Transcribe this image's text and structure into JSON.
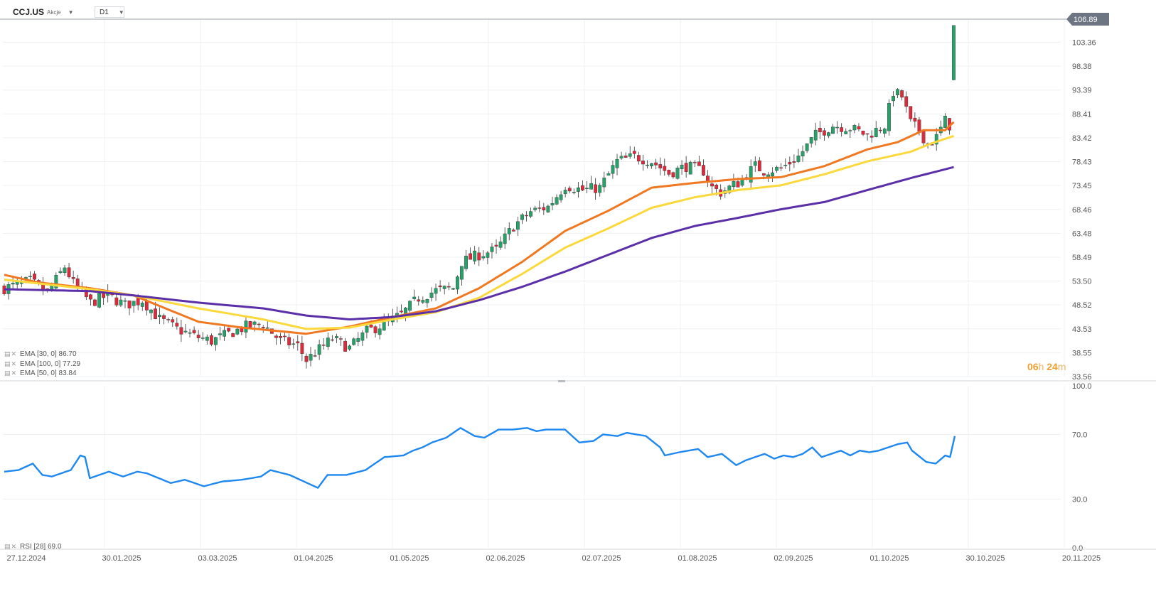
{
  "header": {
    "symbol": "CCJ.US",
    "instrument_type": "Akcje",
    "timeframe": "D1"
  },
  "countdown": {
    "hours": "06",
    "hours_unit": "h",
    "minutes": "24",
    "minutes_unit": "m"
  },
  "legend": {
    "ema30": "EMA [30, 0] 86.70",
    "ema100": "EMA [100, 0] 77.29",
    "ema50": "EMA [50, 0] 83.84",
    "rsi": "RSI [28] 69.0"
  },
  "colors": {
    "up": "#26a269",
    "down": "#e0293a",
    "ema30": "#f07820",
    "ema50": "#fbd83c",
    "ema100": "#5b2fa8",
    "rsi": "#1e88f0",
    "price_tag": "#6d7582"
  },
  "chart_data": [
    {
      "type": "candlestick",
      "title": "CCJ.US",
      "x_labels": [
        "27.12.2024",
        "30.01.2025",
        "03.03.2025",
        "01.04.2025",
        "01.05.2025",
        "02.06.2025",
        "02.07.2025",
        "01.08.2025",
        "02.09.2025",
        "01.10.2025",
        "30.10.2025",
        "20.11.2025"
      ],
      "y_ticks": [
        "103.36",
        "98.38",
        "93.39",
        "88.41",
        "83.42",
        "78.43",
        "73.45",
        "68.46",
        "63.48",
        "58.49",
        "53.50",
        "48.52",
        "43.53",
        "38.55",
        "33.56"
      ],
      "ylim": [
        33.56,
        108.33
      ],
      "last_price": "106.89",
      "series": [
        {
          "name": "EMA [30, 0]",
          "color": "ema30",
          "anchors": [
            [
              0,
              54.8
            ],
            [
              8,
              53.2
            ],
            [
              20,
              52.0
            ],
            [
              30,
              50.5
            ],
            [
              45,
              45.0
            ],
            [
              55,
              43.8
            ],
            [
              70,
              42.5
            ],
            [
              80,
              44.0
            ],
            [
              90,
              46.0
            ],
            [
              100,
              47.8
            ],
            [
              110,
              52.0
            ],
            [
              120,
              57.5
            ],
            [
              130,
              64.0
            ],
            [
              140,
              68.2
            ],
            [
              150,
              73.0
            ],
            [
              160,
              74.0
            ],
            [
              170,
              74.8
            ],
            [
              180,
              75.2
            ],
            [
              190,
              77.5
            ],
            [
              200,
              81.0
            ],
            [
              207,
              82.5
            ],
            [
              213,
              85.0
            ],
            [
              218,
              85.0
            ],
            [
              220,
              86.7
            ]
          ]
        },
        {
          "name": "EMA [50, 0]",
          "color": "ema50",
          "anchors": [
            [
              0,
              53.8
            ],
            [
              20,
              51.8
            ],
            [
              30,
              50.5
            ],
            [
              45,
              47.8
            ],
            [
              60,
              45.5
            ],
            [
              70,
              43.5
            ],
            [
              80,
              43.8
            ],
            [
              90,
              45.5
            ],
            [
              100,
              47.0
            ],
            [
              110,
              50.0
            ],
            [
              120,
              55.0
            ],
            [
              130,
              60.5
            ],
            [
              140,
              64.5
            ],
            [
              150,
              68.8
            ],
            [
              160,
              71.0
            ],
            [
              170,
              72.5
            ],
            [
              180,
              73.5
            ],
            [
              190,
              75.8
            ],
            [
              200,
              78.5
            ],
            [
              210,
              80.5
            ],
            [
              215,
              82.3
            ],
            [
              220,
              83.8
            ]
          ]
        },
        {
          "name": "EMA [100, 0]",
          "color": "ema100",
          "anchors": [
            [
              0,
              51.8
            ],
            [
              20,
              51.4
            ],
            [
              30,
              50.5
            ],
            [
              45,
              49.0
            ],
            [
              60,
              47.8
            ],
            [
              70,
              46.3
            ],
            [
              80,
              45.5
            ],
            [
              90,
              46.0
            ],
            [
              100,
              47.2
            ],
            [
              110,
              49.5
            ],
            [
              120,
              52.3
            ],
            [
              130,
              55.5
            ],
            [
              140,
              59.0
            ],
            [
              150,
              62.5
            ],
            [
              160,
              65.0
            ],
            [
              170,
              66.7
            ],
            [
              180,
              68.5
            ],
            [
              190,
              70.0
            ],
            [
              200,
              72.5
            ],
            [
              210,
              75.0
            ],
            [
              220,
              77.3
            ]
          ]
        }
      ],
      "price_path": [
        [
          0,
          52.0
        ],
        [
          6,
          53.5
        ],
        [
          10,
          51.0
        ],
        [
          14,
          56.5
        ],
        [
          16,
          53.0
        ],
        [
          20,
          49.0
        ],
        [
          24,
          50.5
        ],
        [
          28,
          48.5
        ],
        [
          32,
          49.5
        ],
        [
          36,
          45.5
        ],
        [
          40,
          43.5
        ],
        [
          44,
          42.0
        ],
        [
          48,
          41.0
        ],
        [
          52,
          42.5
        ],
        [
          56,
          44.0
        ],
        [
          60,
          44.5
        ],
        [
          64,
          41.0
        ],
        [
          68,
          40.0
        ],
        [
          70,
          37.0
        ],
        [
          72,
          38.5
        ],
        [
          76,
          41.5
        ],
        [
          80,
          39.5
        ],
        [
          84,
          43.0
        ],
        [
          88,
          44.5
        ],
        [
          92,
          46.5
        ],
        [
          96,
          50.0
        ],
        [
          100,
          51.5
        ],
        [
          104,
          52.0
        ],
        [
          106,
          57.5
        ],
        [
          110,
          59.0
        ],
        [
          114,
          60.0
        ],
        [
          118,
          65.0
        ],
        [
          122,
          68.0
        ],
        [
          126,
          69.0
        ],
        [
          130,
          73.5
        ],
        [
          134,
          72.5
        ],
        [
          138,
          73.0
        ],
        [
          142,
          78.5
        ],
        [
          146,
          79.5
        ],
        [
          150,
          78.5
        ],
        [
          154,
          76.0
        ],
        [
          158,
          77.5
        ],
        [
          162,
          76.5
        ],
        [
          164,
          73.0
        ],
        [
          166,
          72.0
        ],
        [
          170,
          74.0
        ],
        [
          174,
          77.5
        ],
        [
          176,
          76.5
        ],
        [
          180,
          77.0
        ],
        [
          184,
          79.5
        ],
        [
          188,
          84.0
        ],
        [
          192,
          86.0
        ],
        [
          196,
          85.5
        ],
        [
          200,
          84.0
        ],
        [
          204,
          86.0
        ],
        [
          206,
          93.0
        ],
        [
          208,
          92.0
        ],
        [
          210,
          86.5
        ],
        [
          212,
          85.0
        ],
        [
          214,
          82.0
        ],
        [
          216,
          83.5
        ],
        [
          218,
          87.0
        ],
        [
          219,
          86.0
        ],
        [
          220,
          106.89
        ]
      ],
      "candle_count": 221
    },
    {
      "type": "line",
      "title": "RSI [28]",
      "y_ticks": [
        "100.0",
        "70.0",
        "30.0",
        "0.0"
      ],
      "ylim": [
        0,
        100
      ],
      "rsi_path": [
        [
          0,
          47
        ],
        [
          3,
          48
        ],
        [
          6,
          52
        ],
        [
          8,
          45
        ],
        [
          10,
          44
        ],
        [
          14,
          48
        ],
        [
          16,
          57
        ],
        [
          17,
          56
        ],
        [
          18,
          43
        ],
        [
          22,
          47
        ],
        [
          25,
          44
        ],
        [
          28,
          47
        ],
        [
          30,
          46
        ],
        [
          35,
          40
        ],
        [
          38,
          42
        ],
        [
          42,
          38
        ],
        [
          46,
          41
        ],
        [
          50,
          42
        ],
        [
          54,
          44
        ],
        [
          56,
          48
        ],
        [
          60,
          45
        ],
        [
          63,
          41
        ],
        [
          66,
          37
        ],
        [
          68,
          45
        ],
        [
          72,
          45
        ],
        [
          76,
          48
        ],
        [
          80,
          56
        ],
        [
          84,
          57
        ],
        [
          86,
          60
        ],
        [
          88,
          62
        ],
        [
          90,
          65
        ],
        [
          93,
          68
        ],
        [
          96,
          74
        ],
        [
          99,
          69
        ],
        [
          101,
          68
        ],
        [
          104,
          73
        ],
        [
          107,
          73
        ],
        [
          110,
          74
        ],
        [
          112,
          72
        ],
        [
          114,
          73
        ],
        [
          118,
          73
        ],
        [
          121,
          65
        ],
        [
          124,
          66
        ],
        [
          126,
          70
        ],
        [
          129,
          69
        ],
        [
          131,
          71
        ],
        [
          135,
          69
        ],
        [
          138,
          62
        ],
        [
          139,
          57
        ],
        [
          142,
          59
        ],
        [
          146,
          61
        ],
        [
          148,
          56
        ],
        [
          151,
          58
        ],
        [
          154,
          51
        ],
        [
          156,
          54
        ],
        [
          158,
          56
        ],
        [
          160,
          58
        ],
        [
          162,
          55
        ],
        [
          164,
          57
        ],
        [
          166,
          56
        ],
        [
          168,
          58
        ],
        [
          170,
          62
        ],
        [
          172,
          56
        ],
        [
          174,
          58
        ],
        [
          176,
          60
        ],
        [
          178,
          57
        ],
        [
          180,
          60
        ],
        [
          182,
          59
        ],
        [
          184,
          60
        ],
        [
          186,
          62
        ],
        [
          188,
          64
        ],
        [
          190,
          65
        ],
        [
          191,
          60
        ],
        [
          194,
          53
        ],
        [
          196,
          52
        ],
        [
          198,
          57
        ],
        [
          199,
          56
        ],
        [
          200,
          69
        ]
      ]
    }
  ]
}
